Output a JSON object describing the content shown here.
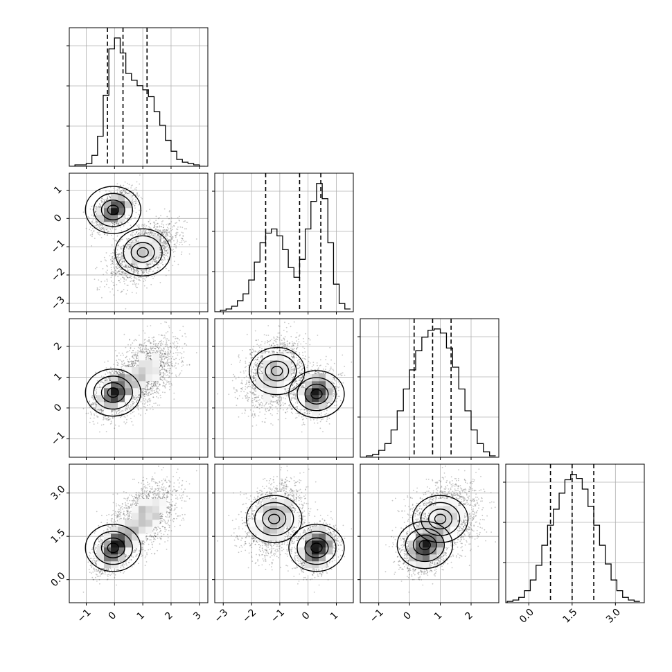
{
  "chart_data": {
    "type": "corner",
    "title": "",
    "grid": true,
    "colors": {
      "line": "#000000",
      "points": "#333333",
      "grid": "#b0b0b0",
      "density_dark": "#000000",
      "density_light": "#ffffff"
    },
    "variables": [
      {
        "index": 0,
        "range": [
          -1.6,
          3.3
        ],
        "ticks": [
          -1,
          0,
          1,
          2,
          3
        ],
        "tick_labels": [
          "−1",
          "0",
          "1",
          "2",
          "3"
        ]
      },
      {
        "index": 1,
        "range": [
          -3.3,
          1.6
        ],
        "ticks": [
          -3,
          -2,
          -1,
          0,
          1
        ],
        "tick_labels": [
          "−3",
          "−2",
          "−1",
          "0",
          "1"
        ]
      },
      {
        "index": 2,
        "range": [
          -1.6,
          2.9
        ],
        "ticks": [
          -1,
          0,
          1,
          2
        ],
        "tick_labels": [
          "−1",
          "0",
          "1",
          "2"
        ]
      },
      {
        "index": 3,
        "range": [
          -0.8,
          4.0
        ],
        "ticks": [
          0,
          1.5,
          3
        ],
        "tick_labels": [
          "0.0",
          "1.5",
          "3.0"
        ]
      }
    ],
    "quantiles": [
      [
        -0.25,
        0.3,
        1.15
      ],
      [
        -1.5,
        -0.3,
        0.45
      ],
      [
        0.15,
        0.75,
        1.35
      ],
      [
        0.75,
        1.5,
        2.25
      ]
    ],
    "histograms": [
      {
        "index": 0,
        "bin_edges": [
          -1.6,
          -1.4,
          -1.2,
          -1.0,
          -0.8,
          -0.6,
          -0.4,
          -0.2,
          0.0,
          0.2,
          0.4,
          0.6,
          0.8,
          1.0,
          1.2,
          1.4,
          1.6,
          1.8,
          2.0,
          2.2,
          2.4,
          2.6,
          2.8,
          3.0,
          3.2
        ],
        "counts": [
          0,
          1,
          1,
          2,
          8,
          22,
          52,
          86,
          94,
          83,
          68,
          63,
          59,
          56,
          51,
          40,
          30,
          19,
          11,
          5,
          3,
          2,
          1,
          0
        ]
      },
      {
        "index": 1,
        "bin_edges": [
          -3.3,
          -3.1,
          -2.9,
          -2.7,
          -2.5,
          -2.3,
          -2.1,
          -1.9,
          -1.7,
          -1.5,
          -1.3,
          -1.1,
          -0.9,
          -0.7,
          -0.5,
          -0.3,
          -0.1,
          0.1,
          0.3,
          0.5,
          0.7,
          0.9,
          1.1,
          1.3,
          1.5
        ],
        "counts": [
          0,
          1,
          2,
          4,
          8,
          13,
          23,
          36,
          50,
          57,
          60,
          55,
          45,
          32,
          25,
          38,
          60,
          80,
          93,
          82,
          50,
          20,
          6,
          2
        ]
      },
      {
        "index": 2,
        "bin_edges": [
          -1.6,
          -1.4,
          -1.2,
          -1.0,
          -0.8,
          -0.6,
          -0.4,
          -0.2,
          0.0,
          0.2,
          0.4,
          0.6,
          0.8,
          1.0,
          1.2,
          1.4,
          1.6,
          1.8,
          2.0,
          2.2,
          2.4,
          2.6,
          2.8
        ],
        "counts": [
          0,
          1,
          2,
          5,
          10,
          20,
          34,
          50,
          64,
          78,
          88,
          93,
          94,
          91,
          80,
          66,
          50,
          34,
          20,
          10,
          4,
          1
        ]
      },
      {
        "index": 3,
        "bin_edges": [
          -0.75,
          -0.55,
          -0.35,
          -0.15,
          0.05,
          0.25,
          0.45,
          0.65,
          0.85,
          1.05,
          1.25,
          1.45,
          1.65,
          1.85,
          2.05,
          2.25,
          2.45,
          2.65,
          2.85,
          3.05,
          3.25,
          3.45,
          3.65,
          3.85
        ],
        "counts": [
          1,
          2,
          4,
          9,
          17,
          28,
          43,
          58,
          70,
          82,
          92,
          96,
          93,
          85,
          72,
          58,
          43,
          29,
          17,
          9,
          4,
          2,
          1
        ]
      }
    ],
    "modes": [
      {
        "weight": 0.5,
        "mean": [
          0.0,
          0.3,
          0.5,
          1.1
        ],
        "sd": [
          0.32,
          0.32,
          0.35,
          0.38
        ]
      },
      {
        "weight": 0.5,
        "mean": [
          1.0,
          -1.2,
          1.1,
          2.1
        ],
        "sd": [
          0.55,
          0.5,
          0.55,
          0.6
        ]
      }
    ],
    "density_peaks": [
      {
        "row": 1,
        "col": 0,
        "x": -0.05,
        "y": 0.3
      },
      {
        "row": 1,
        "col": 0,
        "x": 1.0,
        "y": -1.2
      },
      {
        "row": 2,
        "col": 0,
        "x": -0.05,
        "y": 0.5
      },
      {
        "row": 2,
        "col": 1,
        "x": -1.1,
        "y": 1.2
      },
      {
        "row": 2,
        "col": 1,
        "x": 0.3,
        "y": 0.45
      },
      {
        "row": 3,
        "col": 0,
        "x": -0.05,
        "y": 1.1
      },
      {
        "row": 3,
        "col": 1,
        "x": -1.2,
        "y": 2.1
      },
      {
        "row": 3,
        "col": 1,
        "x": 0.3,
        "y": 1.1
      },
      {
        "row": 3,
        "col": 2,
        "x": 0.5,
        "y": 1.2
      },
      {
        "row": 3,
        "col": 2,
        "x": 1.0,
        "y": 2.1
      }
    ]
  }
}
